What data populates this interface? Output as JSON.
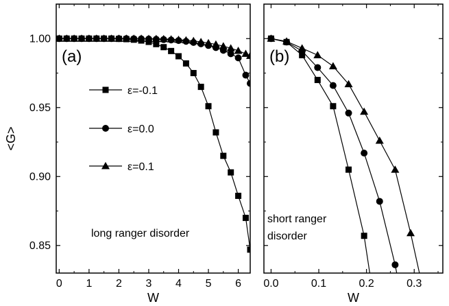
{
  "chart_data": [
    {
      "type": "line",
      "panel_label": "(a)",
      "xlabel": "W",
      "ylabel": "<G>",
      "xlim": [
        -0.1,
        6.4
      ],
      "ylim": [
        0.83,
        1.025
      ],
      "xticks": [
        "0",
        "1",
        "2",
        "3",
        "4",
        "5",
        "6"
      ],
      "yticks": [
        "0.85",
        "0.90",
        "0.95",
        "1.00"
      ],
      "annotation": "long ranger disorder",
      "legend": [
        {
          "label": "ε=-0.1",
          "marker": "square"
        },
        {
          "label": "ε=0.0",
          "marker": "circle"
        },
        {
          "label": "ε=0.1",
          "marker": "triangle"
        }
      ],
      "series": [
        {
          "name": "ε=-0.1",
          "marker": "square",
          "x": [
            0,
            0.25,
            0.5,
            0.75,
            1,
            1.25,
            1.5,
            1.75,
            2,
            2.25,
            2.5,
            2.75,
            3,
            3.25,
            3.5,
            3.75,
            4,
            4.25,
            4.5,
            4.75,
            5,
            5.25,
            5.5,
            5.75,
            6,
            6.25,
            6.4
          ],
          "y": [
            1.0,
            1.0,
            1.0,
            1.0,
            1.0,
            1.0,
            1.0,
            1.0,
            0.9998,
            0.9996,
            0.9992,
            0.9986,
            0.9976,
            0.996,
            0.9938,
            0.991,
            0.9872,
            0.982,
            0.975,
            0.965,
            0.951,
            0.932,
            0.915,
            0.903,
            0.886,
            0.87,
            0.847
          ]
        },
        {
          "name": "ε=0.0",
          "marker": "circle",
          "x": [
            0,
            0.25,
            0.5,
            0.75,
            1,
            1.25,
            1.5,
            1.75,
            2,
            2.25,
            2.5,
            2.75,
            3,
            3.25,
            3.5,
            3.75,
            4,
            4.25,
            4.5,
            4.75,
            5,
            5.25,
            5.5,
            5.75,
            6,
            6.25,
            6.4
          ],
          "y": [
            1.0,
            1.0,
            1.0,
            1.0,
            1.0,
            1.0,
            1.0,
            1.0,
            1.0,
            1.0,
            0.9999,
            0.9998,
            0.9997,
            0.9995,
            0.9993,
            0.999,
            0.9986,
            0.998,
            0.9972,
            0.9962,
            0.995,
            0.9935,
            0.9915,
            0.989,
            0.986,
            0.9735,
            0.9675
          ]
        },
        {
          "name": "ε=0.1",
          "marker": "triangle",
          "x": [
            0,
            0.25,
            0.5,
            0.75,
            1,
            1.25,
            1.5,
            1.75,
            2,
            2.25,
            2.5,
            2.75,
            3,
            3.25,
            3.5,
            3.75,
            4,
            4.25,
            4.5,
            4.75,
            5,
            5.25,
            5.5,
            5.75,
            6,
            6.25,
            6.4
          ],
          "y": [
            1.0,
            1.0,
            1.0,
            1.0,
            1.0,
            1.0,
            1.0,
            1.0,
            1.0,
            1.0,
            1.0,
            1.0,
            0.9999,
            0.9998,
            0.9997,
            0.9995,
            0.9992,
            0.9988,
            0.9983,
            0.9976,
            0.9968,
            0.9958,
            0.9945,
            0.993,
            0.9912,
            0.989,
            0.9875
          ]
        }
      ]
    },
    {
      "type": "line",
      "panel_label": "(b)",
      "xlabel": "W",
      "ylabel": "",
      "xlim": [
        -0.015,
        0.36
      ],
      "ylim": [
        0.83,
        1.025
      ],
      "xticks": [
        "0.0",
        "0.1",
        "0.2",
        "0.3"
      ],
      "annotation_lines": [
        "short ranger",
        "disorder"
      ],
      "series": [
        {
          "name": "ε=-0.1",
          "marker": "square",
          "x": [
            0,
            0.0325,
            0.065,
            0.0975,
            0.13,
            0.1625,
            0.195,
            0.22
          ],
          "y": [
            1.0,
            0.9975,
            0.988,
            0.97,
            0.951,
            0.905,
            0.857,
            0.8
          ]
        },
        {
          "name": "ε=0.0",
          "marker": "circle",
          "x": [
            0,
            0.0325,
            0.065,
            0.0975,
            0.13,
            0.1625,
            0.195,
            0.2275,
            0.26,
            0.28
          ],
          "y": [
            1.0,
            0.9975,
            0.991,
            0.979,
            0.966,
            0.946,
            0.917,
            0.882,
            0.836,
            0.8
          ]
        },
        {
          "name": "ε=0.1",
          "marker": "triangle",
          "x": [
            0,
            0.0325,
            0.065,
            0.0975,
            0.13,
            0.1625,
            0.195,
            0.2275,
            0.26,
            0.2925,
            0.33
          ],
          "y": [
            1.0,
            0.998,
            0.993,
            0.988,
            0.98,
            0.967,
            0.947,
            0.926,
            0.905,
            0.859,
            0.8
          ]
        }
      ]
    }
  ]
}
